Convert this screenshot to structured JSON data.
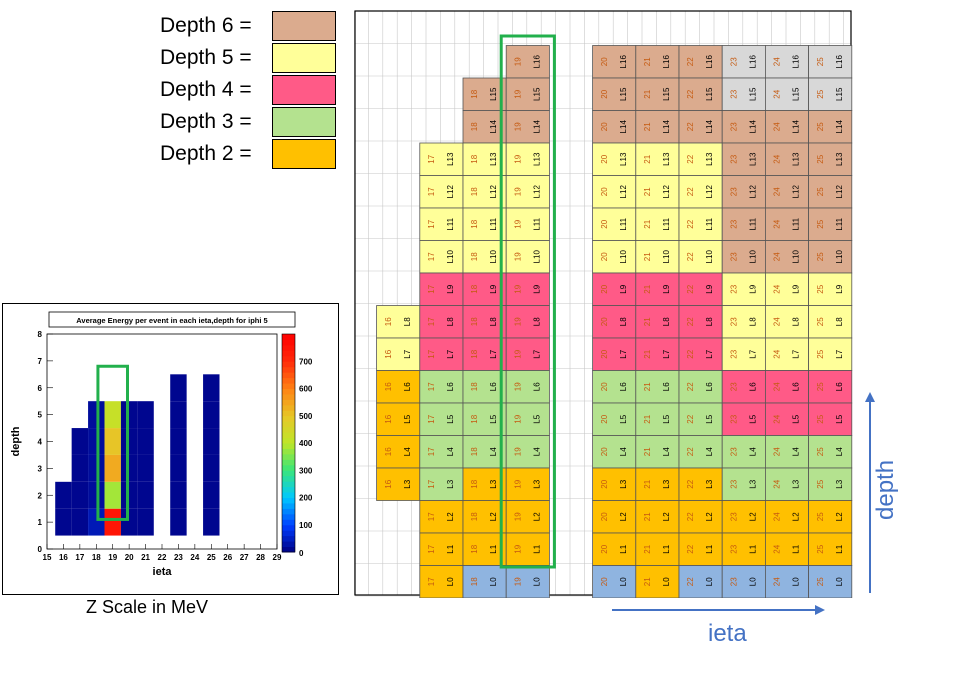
{
  "legend": {
    "items": [
      {
        "label": "Depth 6 =",
        "color": "#dbab8e"
      },
      {
        "label": "Depth 5 =",
        "color": "#ffff99"
      },
      {
        "label": "Depth 4 =",
        "color": "#ff5a87"
      },
      {
        "label": "Depth 3 =",
        "color": "#b4e28f"
      },
      {
        "label": "Depth 2 =",
        "color": "#ffc000"
      }
    ]
  },
  "depth1_color": "#8fb4e0",
  "highlight_color": "#22b04c",
  "arrow_color": "#4472c4",
  "heatmap": {
    "title": "Average Energy per event in each ieta,depth for iphi 5",
    "xlabel": "ieta",
    "ylabel": "depth",
    "xticks": [
      "15",
      "16",
      "17",
      "18",
      "19",
      "20",
      "21",
      "22",
      "23",
      "24",
      "25",
      "26",
      "27",
      "28",
      "29"
    ],
    "yticks": [
      "0",
      "1",
      "2",
      "3",
      "4",
      "5",
      "6",
      "7",
      "8"
    ],
    "zticks": [
      "100",
      "200",
      "300",
      "400",
      "500",
      "600",
      "700"
    ],
    "ztick_zero": "0"
  },
  "zscale_caption": "Z Scale in MeV",
  "axis_ieta_label": "ieta",
  "axis_depth_label": "depth",
  "chart_data": {
    "type": "heatmap",
    "title": "Average Energy per event in each ieta,depth for iphi 5",
    "xlabel": "ieta",
    "ylabel": "depth",
    "xlim": [
      15,
      29
    ],
    "ylim": [
      0,
      8
    ],
    "zlim": [
      0,
      800
    ],
    "colorbar_unit": "MeV",
    "cells": [
      {
        "ieta": 16,
        "depth": 2,
        "value": 10
      },
      {
        "ieta": 16,
        "depth": 3,
        "value": 10
      },
      {
        "ieta": 17,
        "depth": 2,
        "value": 10
      },
      {
        "ieta": 17,
        "depth": 3,
        "value": 10
      },
      {
        "ieta": 17,
        "depth": 4,
        "value": 10
      },
      {
        "ieta": 17,
        "depth": 5,
        "value": 10
      },
      {
        "ieta": 18,
        "depth": 2,
        "value": 40
      },
      {
        "ieta": 18,
        "depth": 3,
        "value": 20
      },
      {
        "ieta": 18,
        "depth": 4,
        "value": 20
      },
      {
        "ieta": 18,
        "depth": 5,
        "value": 20
      },
      {
        "ieta": 18,
        "depth": 6,
        "value": 20
      },
      {
        "ieta": 19,
        "depth": 2,
        "value": 750
      },
      {
        "ieta": 19,
        "depth": 3,
        "value": 380
      },
      {
        "ieta": 19,
        "depth": 4,
        "value": 540
      },
      {
        "ieta": 19,
        "depth": 5,
        "value": 500
      },
      {
        "ieta": 19,
        "depth": 6,
        "value": 420
      },
      {
        "ieta": 20,
        "depth": 2,
        "value": 10
      },
      {
        "ieta": 20,
        "depth": 3,
        "value": 10
      },
      {
        "ieta": 20,
        "depth": 4,
        "value": 10
      },
      {
        "ieta": 20,
        "depth": 5,
        "value": 10
      },
      {
        "ieta": 20,
        "depth": 6,
        "value": 10
      },
      {
        "ieta": 21,
        "depth": 2,
        "value": 10
      },
      {
        "ieta": 21,
        "depth": 3,
        "value": 10
      },
      {
        "ieta": 21,
        "depth": 4,
        "value": 10
      },
      {
        "ieta": 21,
        "depth": 5,
        "value": 10
      },
      {
        "ieta": 21,
        "depth": 6,
        "value": 10
      },
      {
        "ieta": 23,
        "depth": 2,
        "value": 10
      },
      {
        "ieta": 23,
        "depth": 3,
        "value": 10
      },
      {
        "ieta": 23,
        "depth": 4,
        "value": 10
      },
      {
        "ieta": 23,
        "depth": 5,
        "value": 10
      },
      {
        "ieta": 23,
        "depth": 6,
        "value": 10
      },
      {
        "ieta": 23,
        "depth": 7,
        "value": 10
      },
      {
        "ieta": 25,
        "depth": 2,
        "value": 10
      },
      {
        "ieta": 25,
        "depth": 3,
        "value": 10
      },
      {
        "ieta": 25,
        "depth": 4,
        "value": 10
      },
      {
        "ieta": 25,
        "depth": 5,
        "value": 10
      },
      {
        "ieta": 25,
        "depth": 6,
        "value": 10
      },
      {
        "ieta": 25,
        "depth": 7,
        "value": 10
      }
    ],
    "highlight_ieta": 19
  },
  "segmentation": {
    "rows": [
      "L16",
      "L15",
      "L14",
      "L13",
      "L12",
      "L11",
      "L10",
      "L9",
      "L8",
      "L7",
      "L6",
      "L5",
      "L4",
      "L3",
      "L2",
      "L1",
      "L0"
    ],
    "columns": [
      {
        "ieta": "16",
        "start": "L8",
        "depths": {
          "L8": 5,
          "L7": 5,
          "L6": 2,
          "L5": 2,
          "L4": 2,
          "L3": 2
        }
      },
      {
        "ieta": "17",
        "start": "L13",
        "depths": {
          "L13": 5,
          "L12": 5,
          "L11": 5,
          "L10": 5,
          "L9": 4,
          "L8": 4,
          "L7": 4,
          "L6": 3,
          "L5": 3,
          "L4": 3,
          "L3": 3,
          "L2": 2,
          "L1": 2,
          "L0": 2
        }
      },
      {
        "ieta": "18",
        "start": "L15",
        "depths": {
          "L15": 6,
          "L14": 6,
          "L13": 5,
          "L12": 5,
          "L11": 5,
          "L10": 5,
          "L9": 4,
          "L8": 4,
          "L7": 4,
          "L6": 3,
          "L5": 3,
          "L4": 3,
          "L3": 2,
          "L2": 2,
          "L1": 2,
          "L0": 1
        }
      },
      {
        "ieta": "19",
        "start": "L16",
        "depths": {
          "L16": 6,
          "L15": 6,
          "L14": 6,
          "L13": 5,
          "L12": 5,
          "L11": 5,
          "L10": 5,
          "L9": 4,
          "L8": 4,
          "L7": 4,
          "L6": 3,
          "L5": 3,
          "L4": 3,
          "L3": 2,
          "L2": 2,
          "L1": 2,
          "L0": 1
        }
      },
      {
        "ieta": "20",
        "start": "L16",
        "depths": {
          "L16": 6,
          "L15": 6,
          "L14": 6,
          "L13": 5,
          "L12": 5,
          "L11": 5,
          "L10": 5,
          "L9": 4,
          "L8": 4,
          "L7": 4,
          "L6": 3,
          "L5": 3,
          "L4": 3,
          "L3": 2,
          "L2": 2,
          "L1": 2,
          "L0": 1
        }
      },
      {
        "ieta": "21",
        "start": "L16",
        "depths": {
          "L16": 6,
          "L15": 6,
          "L14": 6,
          "L13": 5,
          "L12": 5,
          "L11": 5,
          "L10": 5,
          "L9": 4,
          "L8": 4,
          "L7": 4,
          "L6": 3,
          "L5": 3,
          "L4": 3,
          "L3": 2,
          "L2": 2,
          "L1": 2,
          "L0": 2
        }
      },
      {
        "ieta": "22",
        "start": "L16",
        "depths": {
          "L16": 6,
          "L15": 6,
          "L14": 6,
          "L13": 5,
          "L12": 5,
          "L11": 5,
          "L10": 5,
          "L9": 4,
          "L8": 4,
          "L7": 4,
          "L6": 3,
          "L5": 3,
          "L4": 3,
          "L3": 2,
          "L2": 2,
          "L1": 2,
          "L0": 1
        }
      },
      {
        "ieta": "23",
        "start": "L16",
        "depths": {
          "L16": 7,
          "L15": 7,
          "L14": 6,
          "L13": 6,
          "L12": 6,
          "L11": 6,
          "L10": 6,
          "L9": 5,
          "L8": 5,
          "L7": 5,
          "L6": 4,
          "L5": 4,
          "L4": 3,
          "L3": 3,
          "L2": 2,
          "L1": 2,
          "L0": 1
        }
      },
      {
        "ieta": "24",
        "start": "L16",
        "depths": {
          "L16": 7,
          "L15": 7,
          "L14": 6,
          "L13": 6,
          "L12": 6,
          "L11": 6,
          "L10": 6,
          "L9": 5,
          "L8": 5,
          "L7": 5,
          "L6": 4,
          "L5": 4,
          "L4": 3,
          "L3": 3,
          "L2": 2,
          "L1": 2,
          "L0": 1
        }
      },
      {
        "ieta": "25",
        "start": "L16",
        "depths": {
          "L16": 7,
          "L15": 7,
          "L14": 6,
          "L13": 6,
          "L12": 6,
          "L11": 6,
          "L10": 6,
          "L9": 5,
          "L8": 5,
          "L7": 5,
          "L6": 4,
          "L5": 4,
          "L4": 3,
          "L3": 3,
          "L2": 2,
          "L1": 2,
          "L0": 1
        }
      }
    ]
  }
}
